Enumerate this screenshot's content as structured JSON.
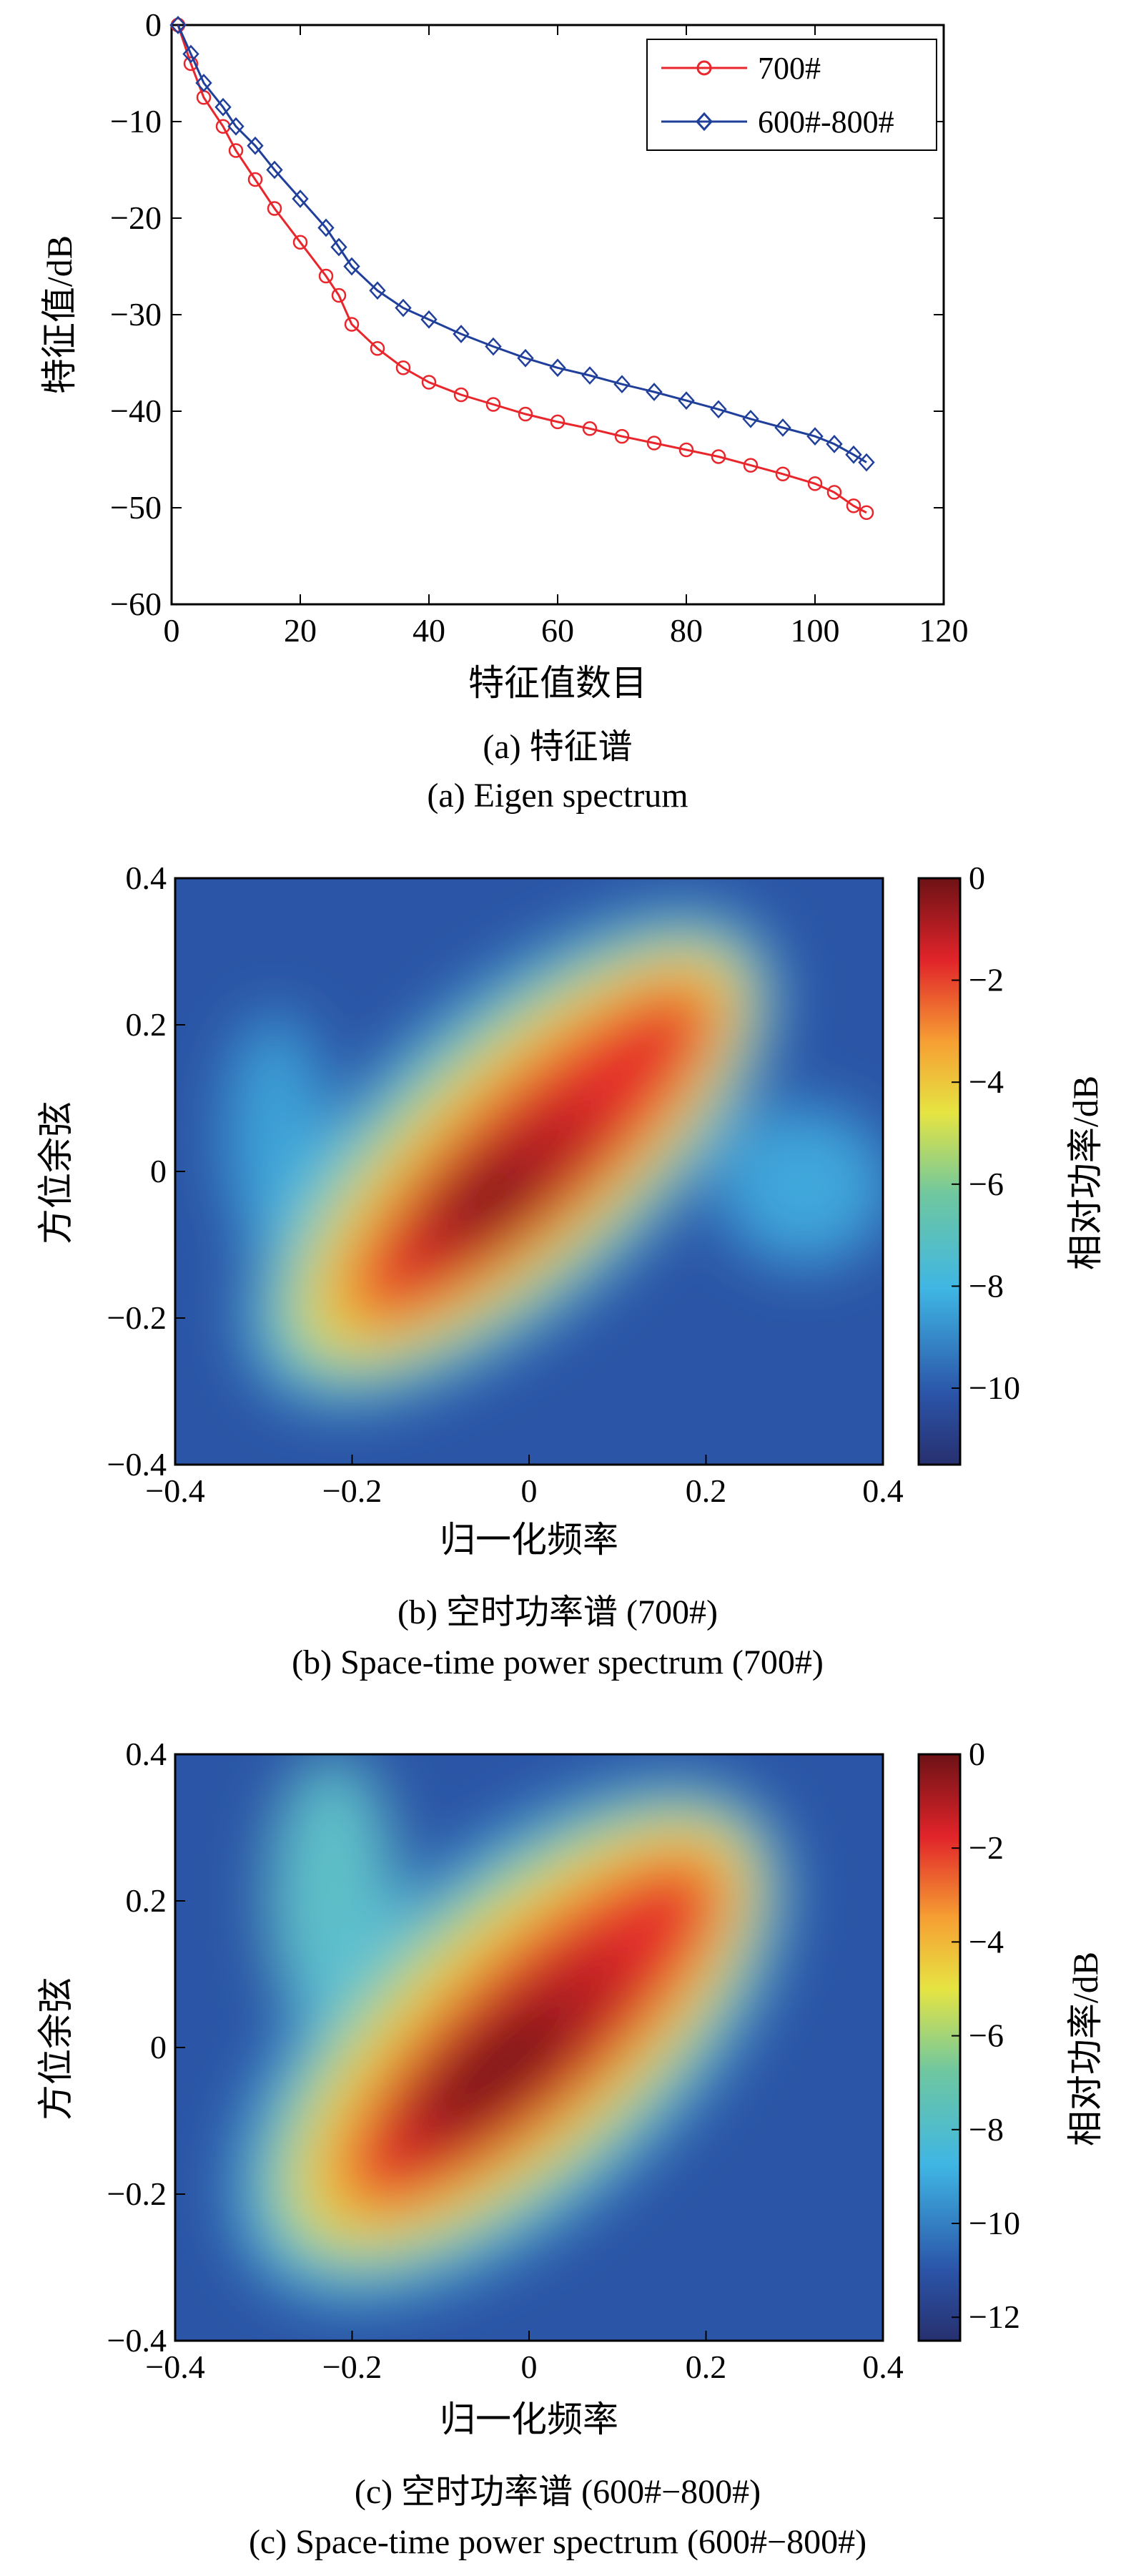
{
  "panels": [
    {
      "caption_cn": "(a) 特征谱",
      "caption_en": "(a) Eigen spectrum",
      "chart_data": {
        "type": "line",
        "xlabel": "特征值数目",
        "ylabel": "特征值/dB",
        "xlim": [
          0,
          120
        ],
        "ylim": [
          -60,
          0
        ],
        "xticks": [
          0,
          20,
          40,
          60,
          80,
          100,
          120
        ],
        "yticks": [
          0,
          -10,
          -20,
          -30,
          -40,
          -50,
          -60
        ],
        "xtick_labels": [
          "0",
          "20",
          "40",
          "60",
          "80",
          "100",
          "120"
        ],
        "ytick_labels": [
          "0",
          "−10",
          "−20",
          "−30",
          "−40",
          "−50",
          "−60"
        ],
        "legend_position": "top-right",
        "grid": false,
        "series": [
          {
            "name": "700#",
            "color": "#e8262b",
            "marker": "circle",
            "points": [
              [
                1,
                0
              ],
              [
                3,
                -4
              ],
              [
                5,
                -7.5
              ],
              [
                8,
                -10.5
              ],
              [
                10,
                -13
              ],
              [
                13,
                -16
              ],
              [
                16,
                -19
              ],
              [
                20,
                -22.5
              ],
              [
                24,
                -26
              ],
              [
                26,
                -28
              ],
              [
                28,
                -31
              ],
              [
                32,
                -33.5
              ],
              [
                36,
                -35.5
              ],
              [
                40,
                -37
              ],
              [
                45,
                -38.3
              ],
              [
                50,
                -39.3
              ],
              [
                55,
                -40.3
              ],
              [
                60,
                -41.1
              ],
              [
                65,
                -41.8
              ],
              [
                70,
                -42.6
              ],
              [
                75,
                -43.3
              ],
              [
                80,
                -44
              ],
              [
                85,
                -44.7
              ],
              [
                90,
                -45.6
              ],
              [
                95,
                -46.5
              ],
              [
                100,
                -47.5
              ],
              [
                103,
                -48.4
              ],
              [
                106,
                -49.8
              ],
              [
                108,
                -50.5
              ]
            ]
          },
          {
            "name": "600#-800#",
            "color": "#1f3f9a",
            "marker": "diamond",
            "points": [
              [
                1,
                0
              ],
              [
                3,
                -3
              ],
              [
                5,
                -6
              ],
              [
                8,
                -8.5
              ],
              [
                10,
                -10.5
              ],
              [
                13,
                -12.5
              ],
              [
                16,
                -15
              ],
              [
                20,
                -18
              ],
              [
                24,
                -21
              ],
              [
                26,
                -23
              ],
              [
                28,
                -25
              ],
              [
                32,
                -27.5
              ],
              [
                36,
                -29.3
              ],
              [
                40,
                -30.5
              ],
              [
                45,
                -32
              ],
              [
                50,
                -33.3
              ],
              [
                55,
                -34.5
              ],
              [
                60,
                -35.5
              ],
              [
                65,
                -36.3
              ],
              [
                70,
                -37.2
              ],
              [
                75,
                -38
              ],
              [
                80,
                -38.9
              ],
              [
                85,
                -39.8
              ],
              [
                90,
                -40.8
              ],
              [
                95,
                -41.7
              ],
              [
                100,
                -42.6
              ],
              [
                103,
                -43.4
              ],
              [
                106,
                -44.5
              ],
              [
                108,
                -45.3
              ]
            ]
          }
        ]
      }
    },
    {
      "caption_cn": "(b) 空时功率谱 (700#)",
      "caption_en": "(b) Space-time power spectrum (700#)",
      "chart_data": {
        "type": "heatmap",
        "xlabel": "归一化频率",
        "ylabel": "方位余弦",
        "xlim": [
          -0.4,
          0.4
        ],
        "ylim": [
          -0.4,
          0.4
        ],
        "xtick_labels": [
          "−0.4",
          "−0.2",
          "0",
          "0.2",
          "0.4"
        ],
        "ytick_labels": [
          "0.4",
          "0.2",
          "0",
          "−0.2",
          "−0.4"
        ],
        "colorbar_label": "相对功率/dB",
        "colorbar_range": [
          -11.5,
          0
        ],
        "colorbar_ticks": [
          0,
          -2,
          -4,
          -6,
          -8,
          -10
        ],
        "colorbar_tick_labels": [
          "0",
          "−2",
          "−4",
          "−6",
          "−8",
          "−10"
        ],
        "peak": [
          -0.05,
          -0.03
        ],
        "ridge_direction": "diagonal, lower-left to upper-right"
      }
    },
    {
      "caption_cn": "(c) 空时功率谱 (600#−800#)",
      "caption_en": "(c) Space-time power spectrum (600#−800#)",
      "chart_data": {
        "type": "heatmap",
        "xlabel": "归一化频率",
        "ylabel": "方位余弦",
        "xlim": [
          -0.4,
          0.4
        ],
        "ylim": [
          -0.4,
          0.4
        ],
        "xtick_labels": [
          "−0.4",
          "−0.2",
          "0",
          "0.2",
          "0.4"
        ],
        "ytick_labels": [
          "0.4",
          "0.2",
          "0",
          "−0.2",
          "−0.4"
        ],
        "colorbar_label": "相对功率/dB",
        "colorbar_range": [
          -12.5,
          0
        ],
        "colorbar_ticks": [
          0,
          -2,
          -4,
          -6,
          -8,
          -10,
          -12
        ],
        "colorbar_tick_labels": [
          "0",
          "−2",
          "−4",
          "−6",
          "−8",
          "−10",
          "−12"
        ],
        "peak": [
          -0.05,
          -0.05
        ],
        "ridge_direction": "diagonal, lower-left to upper-right"
      }
    }
  ]
}
